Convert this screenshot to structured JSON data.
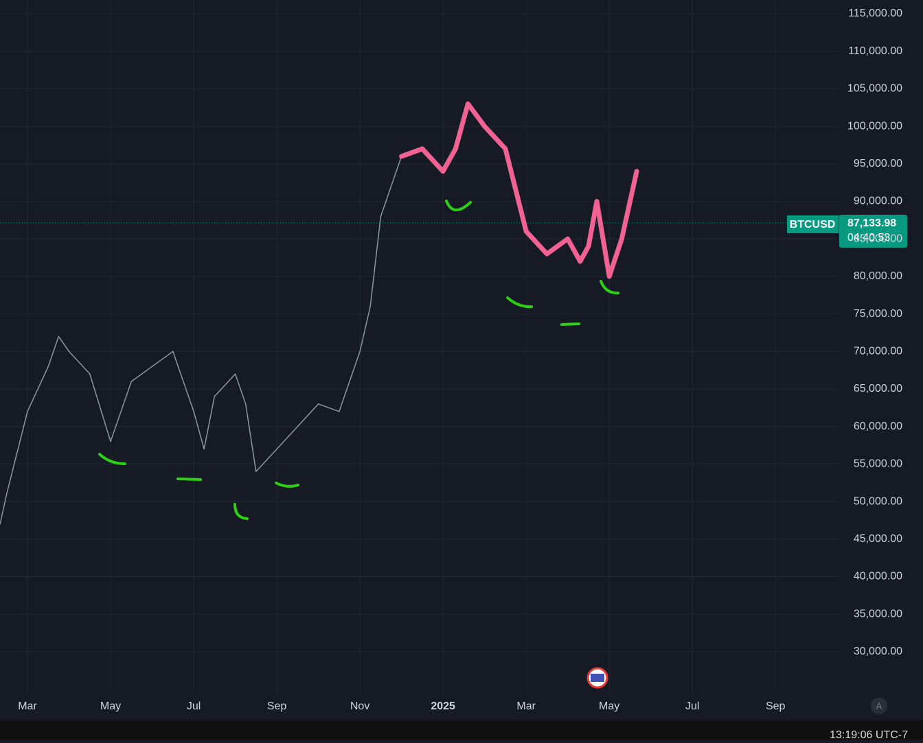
{
  "chart_data": {
    "type": "line",
    "symbol": "BTCUSD",
    "last_price": {
      "value": 87133.98,
      "label": "87,133.98"
    },
    "countdown": "04:40:53",
    "clock": "13:19:06 UTC-7",
    "series": [
      {
        "name": "BTCUSD",
        "color": "#8a9a9a",
        "x": [
          -0.66,
          -0.5,
          0,
          0.5,
          0.75,
          1,
          1.5,
          2,
          2.5,
          3,
          3.5,
          4,
          4.25,
          4.5,
          5,
          5.25,
          5.5,
          6,
          6.5,
          7,
          7.5,
          8,
          8.25,
          8.5,
          9,
          9.5,
          10,
          10.3,
          10.6,
          11,
          11.5,
          12,
          12.5,
          13,
          13.3,
          13.5,
          13.7,
          14,
          14.3,
          14.66
        ],
        "values": [
          47000,
          51000,
          62000,
          68000,
          72000,
          70000,
          67000,
          58000,
          66000,
          68000,
          70000,
          62000,
          57000,
          64000,
          67000,
          63000,
          54000,
          57000,
          60000,
          63000,
          62000,
          70000,
          76000,
          88000,
          96000,
          97000,
          94000,
          97000,
          103000,
          100000,
          97000,
          86000,
          83000,
          85000,
          82000,
          84000,
          90000,
          80000,
          85000,
          94000
        ]
      },
      {
        "color": "#f06292",
        "x": [
          9,
          9.5,
          10,
          10.3,
          10.6,
          11,
          11.5,
          12,
          12.5,
          13,
          13.3,
          13.5,
          13.7,
          14,
          14.3,
          14.66
        ],
        "values": [
          96000,
          97000,
          94000,
          97000,
          103000,
          100000,
          97000,
          86000,
          83000,
          85000,
          82000,
          84000,
          90000,
          80000,
          85000,
          94000
        ]
      }
    ],
    "xlim": [
      -0.661,
      19.5
    ],
    "xticks": [
      {
        "value": 0,
        "label": "Mar"
      },
      {
        "value": 2,
        "label": "May"
      },
      {
        "value": 4,
        "label": "Jul"
      },
      {
        "value": 6,
        "label": "Sep"
      },
      {
        "value": 8,
        "label": "Nov"
      },
      {
        "value": 10,
        "label": "2025"
      },
      {
        "value": 12,
        "label": "Mar"
      },
      {
        "value": 14,
        "label": "May"
      },
      {
        "value": 16,
        "label": "Jul"
      },
      {
        "value": 18,
        "label": "Sep"
      }
    ],
    "ylim": [
      24500,
      116830
    ],
    "yticks": [
      {
        "value": 30000,
        "label": "30,000.00"
      },
      {
        "value": 35000,
        "label": "35,000.00"
      },
      {
        "value": 40000,
        "label": "40,000.00"
      },
      {
        "value": 45000,
        "label": "45,000.00"
      },
      {
        "value": 50000,
        "label": "50,000.00"
      },
      {
        "value": 55000,
        "label": "55,000.00"
      },
      {
        "value": 60000,
        "label": "60,000.00"
      },
      {
        "value": 65000,
        "label": "65,000.00"
      },
      {
        "value": 70000,
        "label": "70,000.00"
      },
      {
        "value": 75000,
        "label": "75,000.00"
      },
      {
        "value": 80000,
        "label": "80,000.00"
      },
      {
        "value": 85000,
        "label": "85,000.00"
      },
      {
        "value": 90000,
        "label": "90,000.00"
      },
      {
        "value": 95000,
        "label": "95,000.00"
      },
      {
        "value": 100000,
        "label": "100,000.00"
      },
      {
        "value": 105000,
        "label": "105,000.00"
      },
      {
        "value": 110000,
        "label": "110,000.00"
      },
      {
        "value": 115000,
        "label": "115,000.00"
      }
    ],
    "grid": true
  }
}
